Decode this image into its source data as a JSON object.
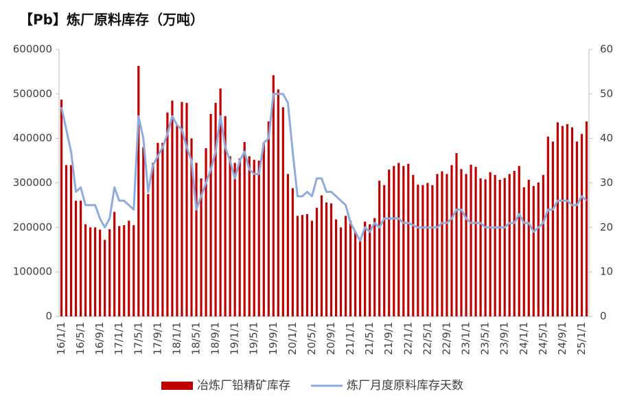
{
  "chart_data": {
    "type": "bar",
    "title": "【Pb】炼厂原料库存（万吨）",
    "categories": [
      "16/1/1",
      null,
      null,
      null,
      "16/5/1",
      null,
      null,
      null,
      "16/9/1",
      null,
      null,
      null,
      "17/1/1",
      null,
      null,
      null,
      "17/5/1",
      null,
      null,
      null,
      "17/9/1",
      null,
      null,
      null,
      "18/1/1",
      null,
      null,
      null,
      "18/5/1",
      null,
      null,
      null,
      "18/9/1",
      null,
      null,
      null,
      "19/1/1",
      null,
      null,
      null,
      "19/5/1",
      null,
      null,
      null,
      "19/9/1",
      null,
      null,
      null,
      "20/1/1",
      null,
      null,
      null,
      "20/5/1",
      null,
      null,
      null,
      "20/9/1",
      null,
      null,
      null,
      "21/1/1",
      null,
      null,
      null,
      "21/5/1",
      null,
      null,
      null,
      "21/9/1",
      null,
      null,
      null,
      "22/1/1",
      null,
      null,
      null,
      "22/5/1",
      null,
      null,
      null,
      "22/9/1",
      null,
      null,
      null,
      "23/1/1",
      null,
      null,
      null,
      "23/5/1",
      null,
      null,
      null,
      "23/9/1",
      null,
      null,
      null,
      "24/1/1",
      null,
      null,
      null,
      "24/5/1",
      null,
      null,
      null,
      "24/9/1",
      null,
      null,
      null,
      "25/1/1",
      null
    ],
    "series": [
      {
        "name": "冶炼厂铅精矿库存",
        "type": "bar",
        "color": "#c00000",
        "values": [
          487000,
          340000,
          340000,
          260000,
          260000,
          207000,
          200000,
          200000,
          195000,
          172000,
          196000,
          235000,
          203000,
          205000,
          215000,
          205000,
          563000,
          380000,
          275000,
          345000,
          390000,
          390000,
          458000,
          485000,
          430000,
          482000,
          480000,
          400000,
          345000,
          310000,
          378000,
          455000,
          480000,
          512000,
          450000,
          360000,
          345000,
          355000,
          392000,
          360000,
          352000,
          350000,
          390000,
          438000,
          542000,
          510000,
          470000,
          320000,
          288000,
          226000,
          228000,
          230000,
          215000,
          244000,
          272000,
          256000,
          254000,
          218000,
          200000,
          226000,
          215000,
          190000,
          175000,
          213000,
          207000,
          221000,
          305000,
          295000,
          330000,
          338000,
          345000,
          338000,
          343000,
          318000,
          296000,
          295000,
          300000,
          295000,
          320000,
          326000,
          320000,
          340000,
          367000,
          331000,
          320000,
          341000,
          336000,
          310000,
          308000,
          324000,
          318000,
          307000,
          311000,
          320000,
          327000,
          338000,
          290000,
          307000,
          293000,
          301000,
          318000,
          404000,
          393000,
          436000,
          428000,
          432000,
          425000,
          393000,
          410000,
          438000
        ]
      },
      {
        "name": "炼厂月度原料库存天数",
        "type": "line",
        "axis": "y2",
        "color": "#8faadc",
        "values": [
          47,
          42,
          37,
          28,
          29,
          25,
          25,
          25,
          22,
          20,
          22,
          29,
          26,
          26,
          25,
          24,
          45,
          40,
          28,
          34,
          36,
          38,
          41,
          45,
          43,
          42,
          38,
          35,
          24,
          27,
          30,
          33,
          37,
          45,
          38,
          35,
          31,
          35,
          37,
          33,
          32,
          32,
          39,
          40,
          50,
          50,
          50,
          48,
          37,
          27,
          27,
          28,
          27,
          31,
          31,
          28,
          28,
          27,
          26,
          25,
          21,
          19,
          17,
          20,
          19,
          21,
          20,
          22,
          22,
          22,
          22,
          21,
          21,
          20.5,
          20,
          20,
          20,
          20,
          20,
          21,
          21,
          22,
          24,
          24,
          22,
          21,
          21,
          21,
          20,
          20,
          20,
          20,
          20,
          21,
          21,
          23,
          21,
          21,
          19,
          20,
          21,
          24,
          24,
          26,
          26,
          26,
          25,
          25,
          27,
          26
        ]
      }
    ],
    "ylim": [
      0,
      600000
    ],
    "yticks": [
      0,
      100000,
      200000,
      300000,
      400000,
      500000,
      600000
    ],
    "y2lim": [
      0,
      60
    ],
    "y2ticks": [
      0,
      10,
      20,
      30,
      40,
      50,
      60
    ],
    "grid": false,
    "legend": "bottom"
  }
}
